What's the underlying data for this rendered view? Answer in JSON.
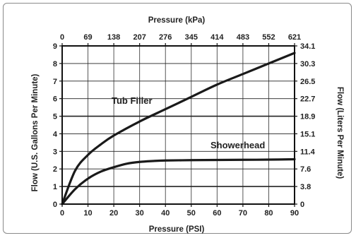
{
  "chart_data": {
    "type": "line",
    "top_axis_title": "Pressure (kPa)",
    "xlabel": "Pressure (PSI)",
    "ylabel": "Flow (U.S. Gallons Per Minute)",
    "ylabel_right": "Flow (Liters Per Minute)",
    "xlim": [
      0,
      90
    ],
    "ylim": [
      0,
      9
    ],
    "x_ticks": [
      0,
      10,
      20,
      30,
      40,
      50,
      60,
      70,
      80,
      90
    ],
    "y_ticks": [
      0,
      1,
      2,
      3,
      4,
      5,
      6,
      7,
      8,
      9
    ],
    "top_ticks": [
      "0",
      "69",
      "138",
      "207",
      "276",
      "345",
      "414",
      "483",
      "552",
      "621"
    ],
    "right_ticks": [
      "0",
      "3.8",
      "7.6",
      "11.4",
      "15.1",
      "18.9",
      "22.7",
      "26.5",
      "30.3",
      "34.1"
    ],
    "grid": true,
    "series": [
      {
        "name": "Tub Filler",
        "x": [
          0,
          5,
          10,
          15,
          20,
          30,
          40,
          50,
          60,
          70,
          80,
          90
        ],
        "y": [
          0,
          1.9,
          2.8,
          3.4,
          3.9,
          4.7,
          5.4,
          6.1,
          6.8,
          7.4,
          8.0,
          8.6
        ]
      },
      {
        "name": "Showerhead",
        "x": [
          0,
          5,
          10,
          15,
          20,
          25,
          30,
          35,
          40,
          50,
          60,
          70,
          80,
          90
        ],
        "y": [
          0,
          0.85,
          1.45,
          1.85,
          2.1,
          2.3,
          2.4,
          2.45,
          2.48,
          2.5,
          2.51,
          2.52,
          2.53,
          2.55
        ]
      }
    ]
  }
}
